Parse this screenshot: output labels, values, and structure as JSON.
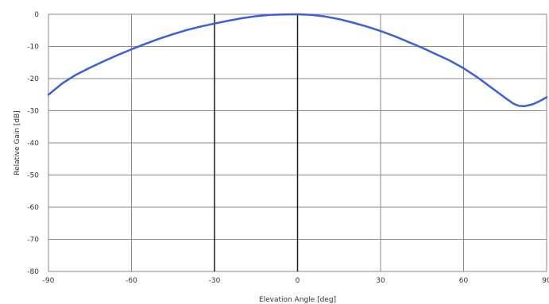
{
  "chart_data": {
    "type": "line",
    "title": "",
    "xlabel": "Elevation Angle [deg]",
    "ylabel": "Relative Gain [dB]",
    "xlim": [
      -90,
      90
    ],
    "ylim": [
      -80,
      0
    ],
    "xticks": [
      -90,
      -60,
      -30,
      0,
      30,
      60,
      90
    ],
    "yticks": [
      0,
      -10,
      -20,
      -30,
      -40,
      -50,
      -60,
      -70,
      -80
    ],
    "grid": true,
    "legend": "none",
    "series": [
      {
        "color": "#3a5fd9",
        "x": [
          -90,
          -85,
          -80,
          -75,
          -70,
          -65,
          -60,
          -55,
          -50,
          -45,
          -40,
          -35,
          -30,
          -25,
          -20,
          -15,
          -10,
          -5,
          0,
          5,
          10,
          15,
          20,
          25,
          30,
          35,
          40,
          45,
          50,
          55,
          60,
          65,
          70,
          75,
          78,
          80,
          82,
          85,
          88,
          90
        ],
        "y": [
          -25,
          -21.5,
          -18.8,
          -16.6,
          -14.6,
          -12.7,
          -10.9,
          -9.2,
          -7.6,
          -6.2,
          -4.9,
          -3.8,
          -2.9,
          -2.0,
          -1.2,
          -0.6,
          -0.2,
          -0.05,
          0,
          -0.2,
          -0.7,
          -1.5,
          -2.6,
          -3.8,
          -5.2,
          -6.8,
          -8.6,
          -10.4,
          -12.4,
          -14.4,
          -16.8,
          -19.6,
          -22.8,
          -26.0,
          -27.8,
          -28.5,
          -28.6,
          -28.0,
          -26.8,
          -25.8
        ]
      }
    ]
  }
}
